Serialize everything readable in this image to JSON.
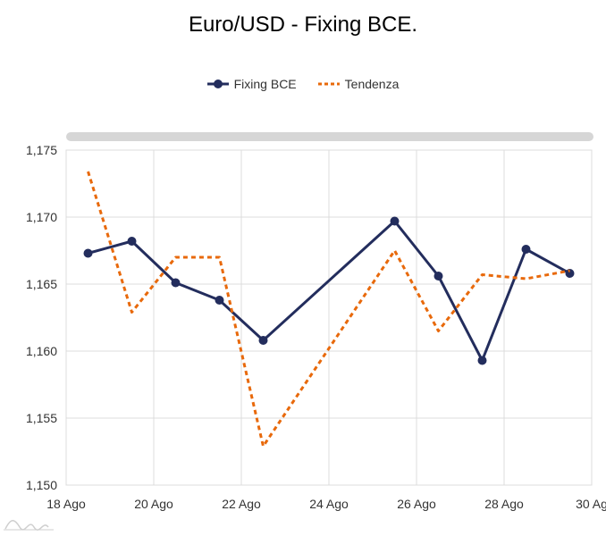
{
  "chart_data": {
    "type": "line",
    "title": "Euro/USD - Fixing BCE.",
    "xlabel": "",
    "ylabel": "",
    "x_ticks": [
      "18 Ago",
      "20 Ago",
      "22 Ago",
      "24 Ago",
      "26 Ago",
      "28 Ago",
      "30 Ag"
    ],
    "y_ticks": [
      "1,150",
      "1,155",
      "1,160",
      "1,165",
      "1,170",
      "1,175"
    ],
    "xlim": [
      "2019-08-18",
      "2019-08-30"
    ],
    "ylim": [
      1.15,
      1.175
    ],
    "grid": true,
    "legend_placement": "top-center",
    "series": [
      {
        "name": "Fixing BCE",
        "color": "#232d5d",
        "style": "solid-with-markers",
        "points": [
          {
            "x": "2019-08-18T12:00",
            "y": 1.1673
          },
          {
            "x": "2019-08-19T12:00",
            "y": 1.1682
          },
          {
            "x": "2019-08-20T12:00",
            "y": 1.1651
          },
          {
            "x": "2019-08-21T12:00",
            "y": 1.1638
          },
          {
            "x": "2019-08-22T12:00",
            "y": 1.1608
          },
          {
            "x": "2019-08-25T12:00",
            "y": 1.1697
          },
          {
            "x": "2019-08-26T12:00",
            "y": 1.1656
          },
          {
            "x": "2019-08-27T12:00",
            "y": 1.1593
          },
          {
            "x": "2019-08-28T12:00",
            "y": 1.1676
          },
          {
            "x": "2019-08-29T12:00",
            "y": 1.1658
          }
        ]
      },
      {
        "name": "Tendenza",
        "color": "#e8690b",
        "style": "dashed",
        "points": [
          {
            "x": "2019-08-18T12:00",
            "y": 1.1734
          },
          {
            "x": "2019-08-19T12:00",
            "y": 1.1629
          },
          {
            "x": "2019-08-20T12:00",
            "y": 1.167
          },
          {
            "x": "2019-08-21T12:00",
            "y": 1.167
          },
          {
            "x": "2019-08-22T12:00",
            "y": 1.1529
          },
          {
            "x": "2019-08-25T12:00",
            "y": 1.1675
          },
          {
            "x": "2019-08-26T12:00",
            "y": 1.1615
          },
          {
            "x": "2019-08-27T12:00",
            "y": 1.1657
          },
          {
            "x": "2019-08-28T12:00",
            "y": 1.1654
          },
          {
            "x": "2019-08-29T12:00",
            "y": 1.166
          }
        ]
      }
    ]
  }
}
